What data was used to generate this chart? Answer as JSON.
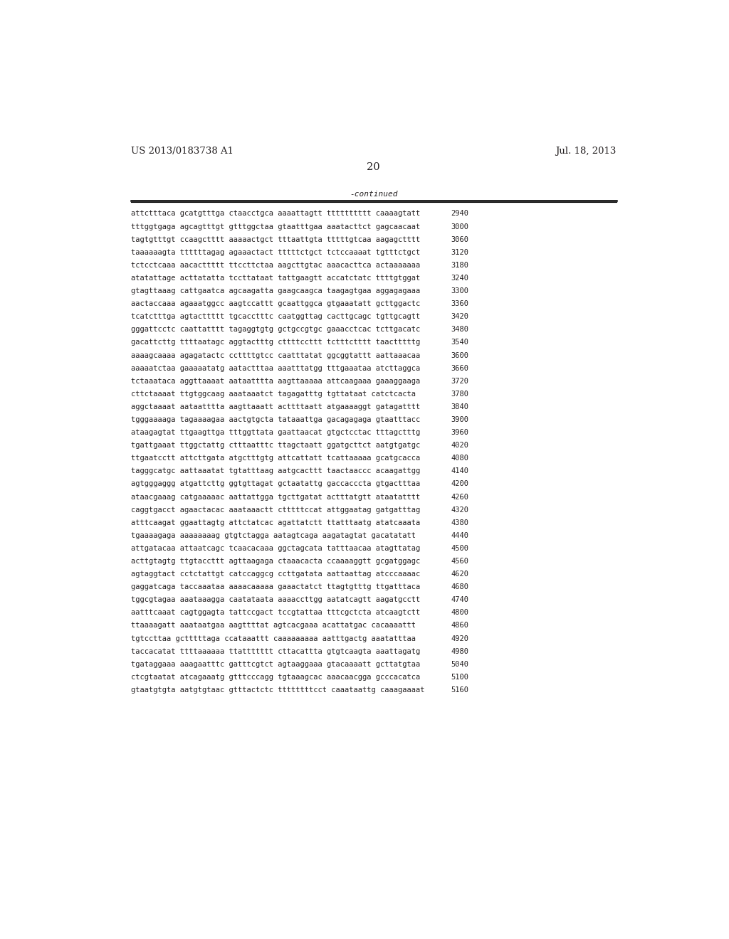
{
  "header_left": "US 2013/0183738 A1",
  "header_right": "Jul. 18, 2013",
  "page_number": "20",
  "continued_label": "-continued",
  "background_color": "#ffffff",
  "text_color": "#231f20",
  "font_size_header": 9.5,
  "font_size_body": 7.5,
  "font_size_page": 10.5,
  "sequence_lines": [
    [
      "attctttaca gcatgtttga ctaacctgca aaaattagtt tttttttttt caaaagtatt",
      "2940"
    ],
    [
      "tttggtgaga agcagtttgt gtttggctaa gtaatttgaa aaatacttct gagcaacaat",
      "3000"
    ],
    [
      "tagtgtttgt ccaagctttt aaaaactgct tttaattgta tttttgtcaa aagagctttt",
      "3060"
    ],
    [
      "taaaaaagta ttttttagag agaaactact tttttctgct tctccaaaat tgtttctgct",
      "3120"
    ],
    [
      "tctcctcaaa aacacttttt ttccttctaa aagcttgtac aaacacttca actaaaaaaa",
      "3180"
    ],
    [
      "atatattage acttatatta tccttataat tattgaagtt accatctatc ttttgtggat",
      "3240"
    ],
    [
      "gtagttaaag cattgaatca agcaagatta gaagcaagca taagagtgaa aggagagaaa",
      "3300"
    ],
    [
      "aactaccaaa agaaatggcc aagtccattt gcaattggca gtgaaatatt gcttggactc",
      "3360"
    ],
    [
      "tcatctttga agtacttttt tgcacctttc caatggttag cacttgcagc tgttgcagtt",
      "3420"
    ],
    [
      "gggattcctc caattatttt tagaggtgtg gctgccgtgc gaaacctcac tcttgacatc",
      "3480"
    ],
    [
      "gacattcttg ttttaatagc aggtactttg cttttccttt tctttctttt taactttttg",
      "3540"
    ],
    [
      "aaaagcaaaa agagatactc ccttttgtcc caatttatat ggcggtattt aattaaacaa",
      "3600"
    ],
    [
      "aaaaatctaa gaaaaatatg aatactttaa aaatttatgg tttgaaataa atcttaggca",
      "3660"
    ],
    [
      "tctaaataca aggttaaaat aataatttta aagttaaaaa attcaagaaa gaaaggaaga",
      "3720"
    ],
    [
      "cttctaaaat ttgtggcaag aaataaatct tagagatttg tgttataat catctcacta",
      "3780"
    ],
    [
      "aggctaaaat aataatttta aagttaaatt acttttaatt atgaaaaggt gatagatttt",
      "3840"
    ],
    [
      "tgggaaaaga tagaaaagaa aactgtgcta tataaattga gacagagaga gtaatttacc",
      "3900"
    ],
    [
      "ataagagtat ttgaagttga tttggttata gaattaacat gtgctcctac tttagctttg",
      "3960"
    ],
    [
      "tgattgaaat ttggctattg ctttaatttc ttagctaatt ggatgcttct aatgtgatgc",
      "4020"
    ],
    [
      "ttgaatcctt attcttgata atgctttgtg attcattatt tcattaaaaa gcatgcacca",
      "4080"
    ],
    [
      "tagggcatgc aattaaatat tgtatttaag aatgcacttt taactaaccc acaagattgg",
      "4140"
    ],
    [
      "agtgggaggg atgattcttg ggtgttagat gctaatattg gaccacccta gtgactttaa",
      "4200"
    ],
    [
      "ataacgaaag catgaaaaac aattattgga tgcttgatat actttatgtt ataatatttt",
      "4260"
    ],
    [
      "caggtgacct agaactacac aaataaactt ctttttccat attggaatag gatgatttag",
      "4320"
    ],
    [
      "atttcaagat ggaattagtg attctatcac agattatctt ttatttaatg atatcaaata",
      "4380"
    ],
    [
      "tgaaaagaga aaaaaaaag gtgtctagga aatagtcaga aagatagtat gacatatatt",
      "4440"
    ],
    [
      "attgatacaa attaatcagc tcaacacaaa ggctagcata tatttaacaa atagttatag",
      "4500"
    ],
    [
      "acttgtagtg ttgtaccttt agttaagaga ctaaacacta ccaaaaggtt gcgatggagc",
      "4560"
    ],
    [
      "agtaggtact cctctattgt catccaggcg ccttgatata aattaattag atcccaaaac",
      "4620"
    ],
    [
      "gaggatcaga taccaaataa aaaacaaaaa gaaactatct ttagtgtttg ttgatttaca",
      "4680"
    ],
    [
      "tggcgtagaa aaataaagga caatataata aaaaccttgg aatatcagtt aagatgcctt",
      "4740"
    ],
    [
      "aatttcaaat cagtggagta tattccgact tccgtattaa tttcgctcta atcaagtctt",
      "4800"
    ],
    [
      "ttaaaagatt aaataatgaa aagttttat agtcacgaaa acattatgac cacaaaattt",
      "4860"
    ],
    [
      "tgtccttaa gctttttaga ccataaattt caaaaaaaaa aatttgactg aaatatttaa",
      "4920"
    ],
    [
      "taccacatat ttttaaaaaa ttattttttt cttacattta gtgtcaagta aaattagatg",
      "4980"
    ],
    [
      "tgataggaaa aaagaatttc gatttcgtct agtaaggaaa gtacaaaatt gcttatgtaa",
      "5040"
    ],
    [
      "ctcgtaatat atcagaaatg gtttcccagg tgtaaagcac aaacaacgga gcccacatca",
      "5100"
    ],
    [
      "gtaatgtgta aatgtgtaac gtttactctc ttttttttcct caaataattg caaagaaaat",
      "5160"
    ]
  ]
}
